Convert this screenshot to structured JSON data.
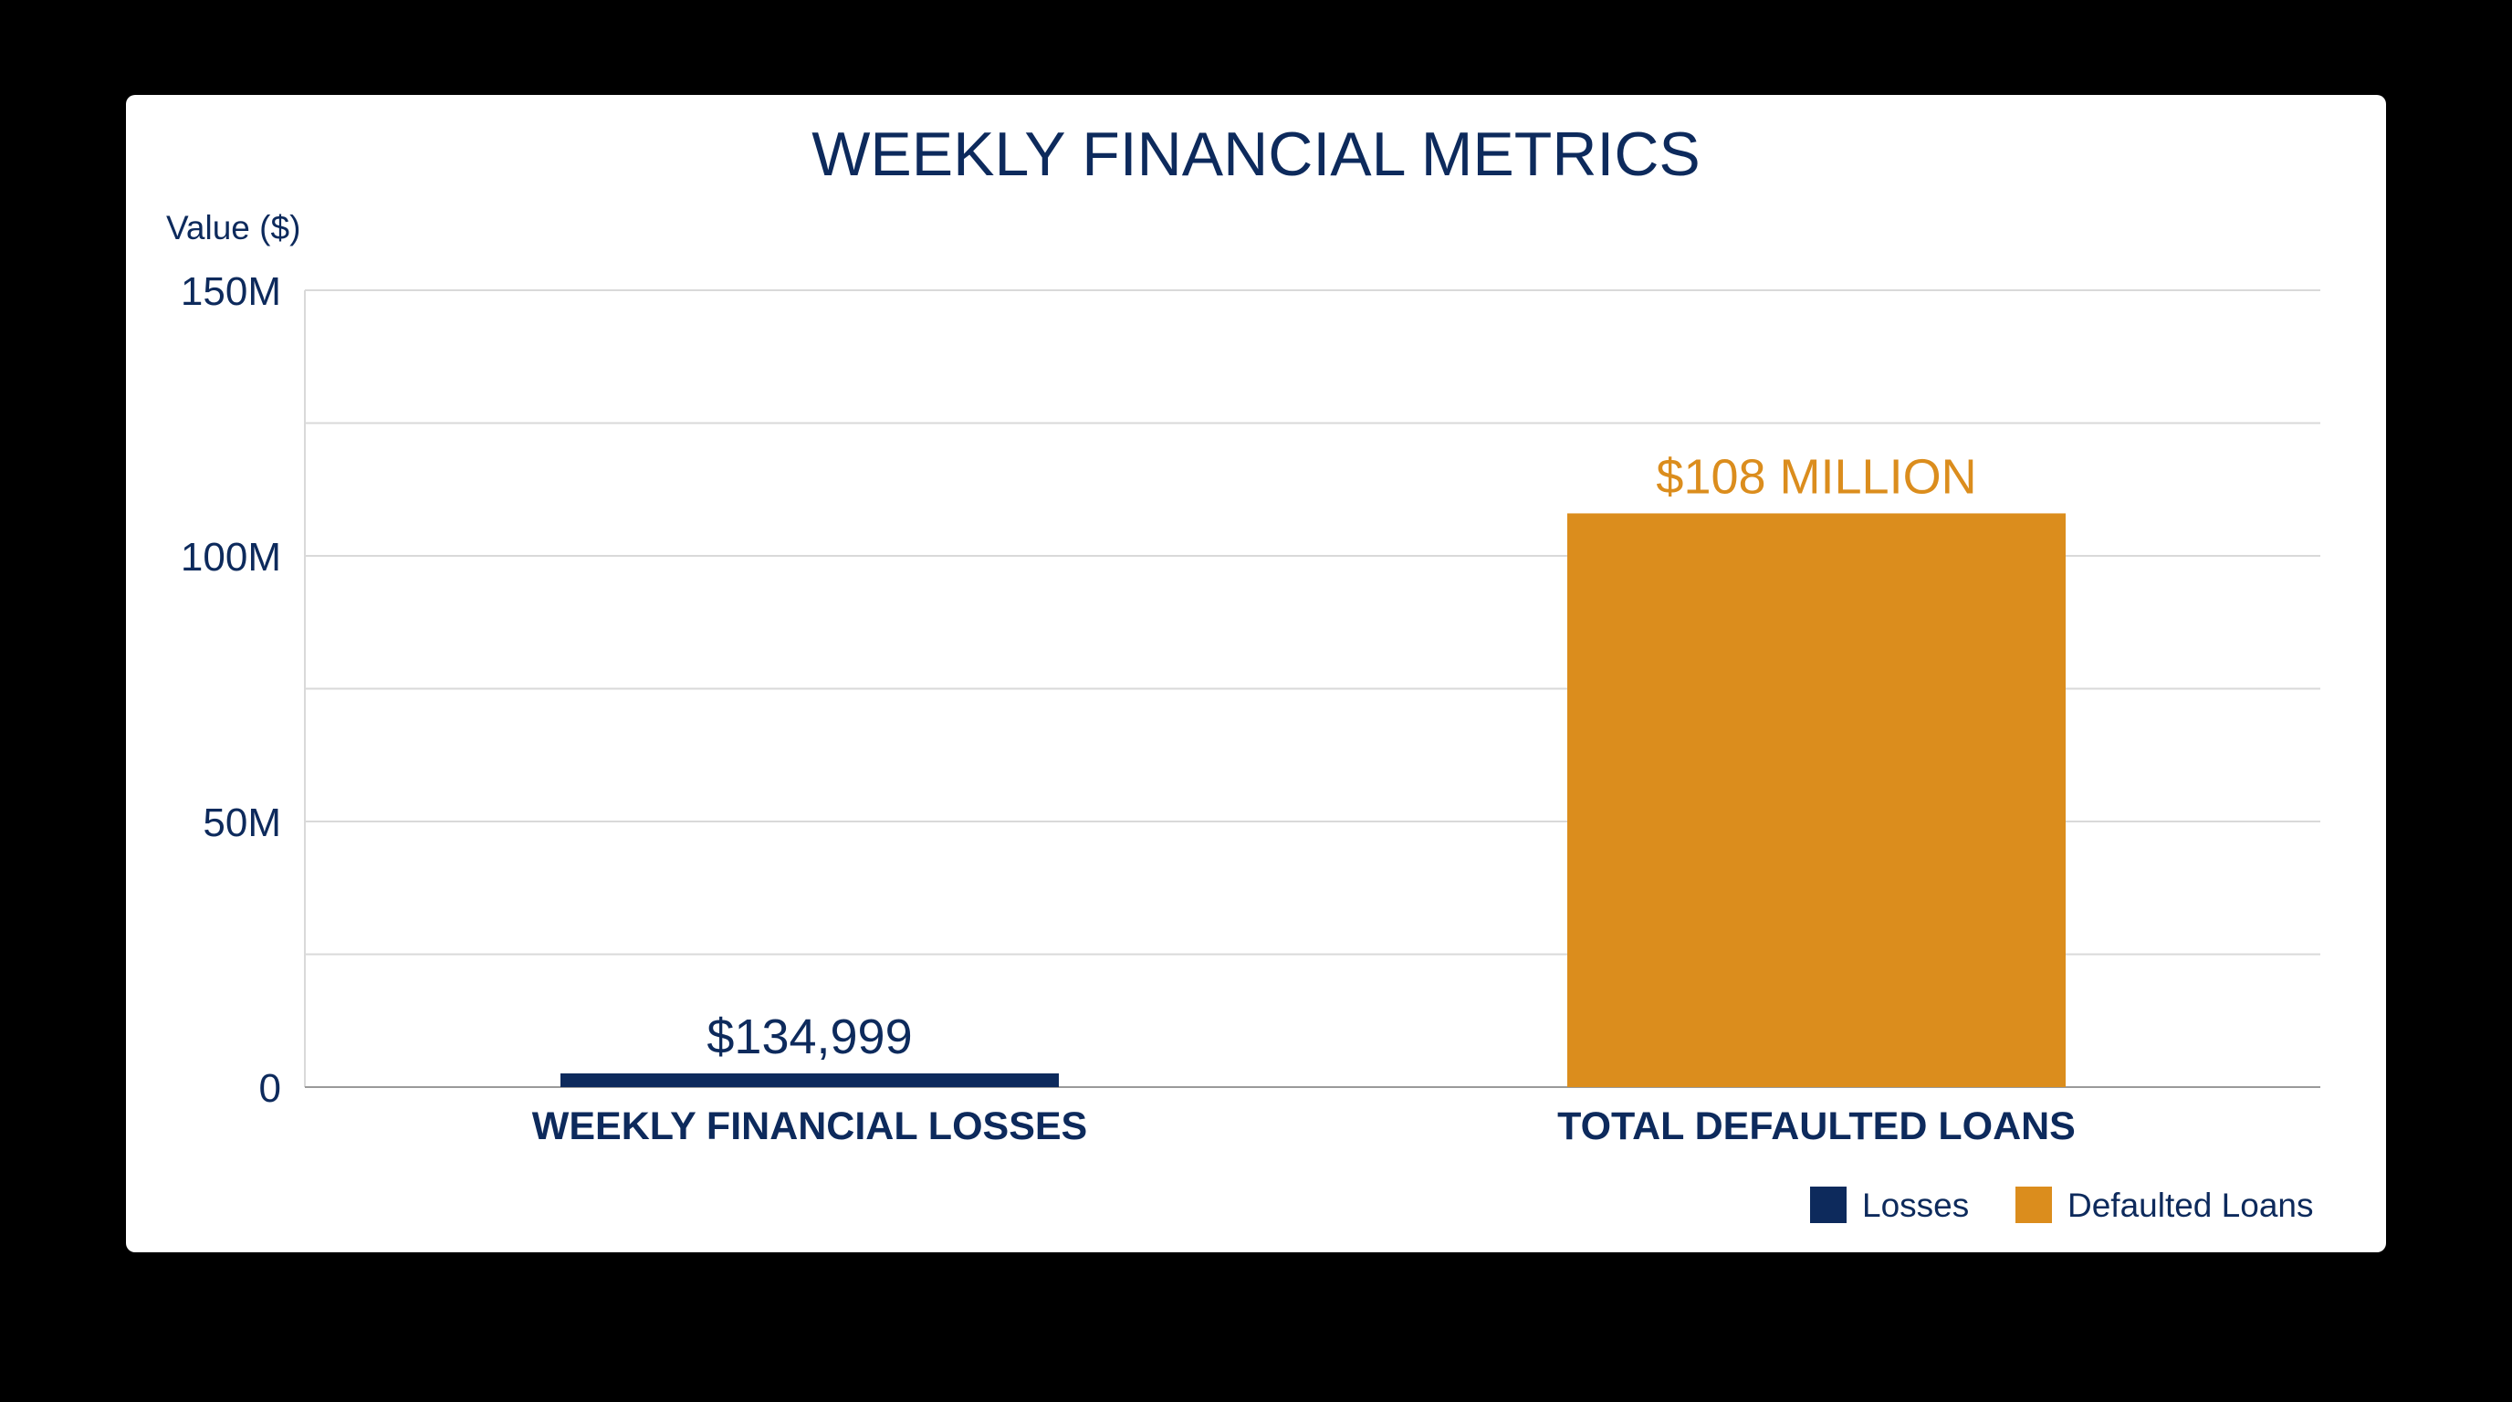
{
  "chart_data": {
    "type": "bar",
    "title": "WEEKLY FINANCIAL METRICS",
    "ylabel": "Value ($)",
    "xlabel": "",
    "ylim": [
      0,
      150000000
    ],
    "yticks": [
      {
        "value": 0,
        "label": "0"
      },
      {
        "value": 50000000,
        "label": "50M"
      },
      {
        "value": 100000000,
        "label": "100M"
      },
      {
        "value": 150000000,
        "label": "150M"
      }
    ],
    "gridlines": [
      0,
      25000000,
      50000000,
      75000000,
      100000000,
      125000000,
      150000000
    ],
    "grid": true,
    "categories": [
      "WEEKLY FINANCIAL LOSSES",
      "TOTAL DEFAULTED LOANS"
    ],
    "values": [
      134999,
      108000000
    ],
    "data_labels": [
      "$134,999",
      "$108 MILLION"
    ],
    "legend_position": "bottom-right",
    "series": [
      {
        "name": "Losses",
        "color": "#0d2a5c",
        "values": [
          134999,
          null
        ]
      },
      {
        "name": "Defaulted Loans",
        "color": "#db8d1d",
        "values": [
          null,
          108000000
        ]
      }
    ],
    "colors": {
      "text": "#0d2a5c",
      "losses": "#0d2a5c",
      "defaulted": "#db8d1d",
      "grid": "#d9d9d9",
      "axis": "#9a9a9a"
    }
  }
}
